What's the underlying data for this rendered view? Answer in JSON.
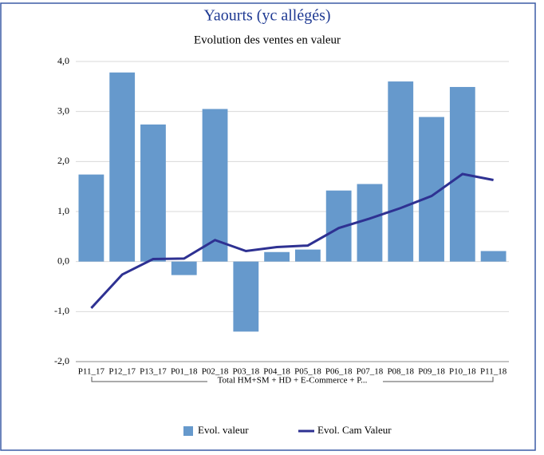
{
  "chart_data": {
    "type": "combo",
    "title": "Yaourts (yc allégés)",
    "subtitle": "Evolution des ventes en valeur",
    "categories": [
      "P11_17",
      "P12_17",
      "P13_17",
      "P01_18",
      "P02_18",
      "P03_18",
      "P04_18",
      "P05_18",
      "P06_18",
      "P07_18",
      "P08_18",
      "P09_18",
      "P10_18",
      "P11_18"
    ],
    "group_label": "Total HM+SM + HD + E-Commerce + P...",
    "series": [
      {
        "name": "Evol.  valeur",
        "type": "bar",
        "color": "#6699cc",
        "values": [
          1.74,
          3.78,
          2.74,
          -0.27,
          3.05,
          -1.4,
          0.19,
          0.24,
          1.42,
          1.55,
          3.6,
          2.89,
          3.49,
          0.21
        ]
      },
      {
        "name": "Evol. Cam Valeur",
        "type": "line",
        "color": "#2e3192",
        "values": [
          -0.93,
          -0.26,
          0.05,
          0.06,
          0.43,
          0.21,
          0.29,
          0.32,
          0.67,
          0.86,
          1.07,
          1.31,
          1.75,
          1.63
        ]
      }
    ],
    "ylim": [
      -2,
      4
    ],
    "yticks": [
      {
        "value": -2,
        "label": "-2,0"
      },
      {
        "value": -1,
        "label": "-1,0"
      },
      {
        "value": 0,
        "label": "0,0"
      },
      {
        "value": 1,
        "label": "1,0"
      },
      {
        "value": 2,
        "label": "2,0"
      },
      {
        "value": 3,
        "label": "3,0"
      },
      {
        "value": 4,
        "label": "4,0"
      }
    ],
    "grid": true,
    "legend": "bottom"
  }
}
